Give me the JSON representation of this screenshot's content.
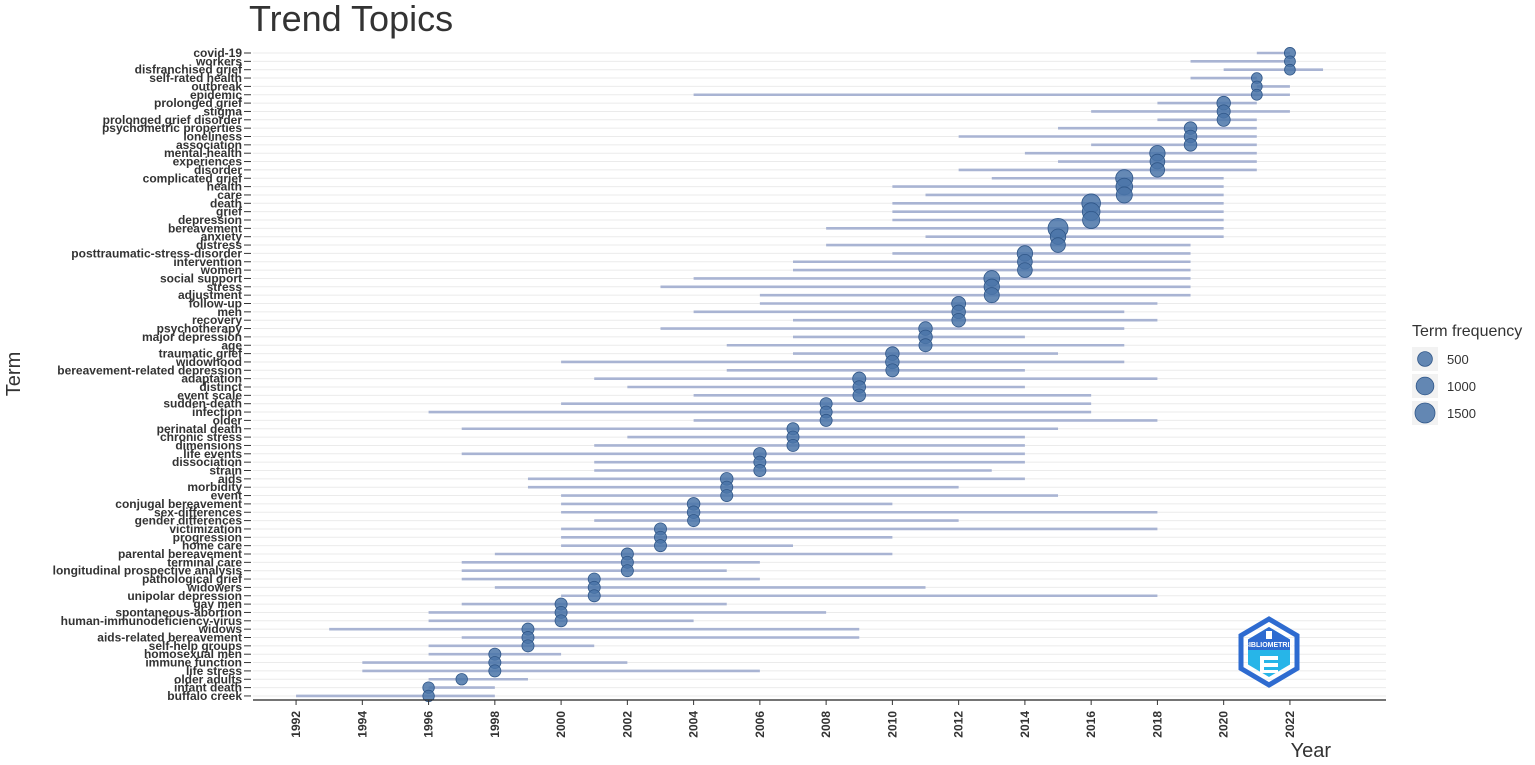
{
  "chart_data": {
    "type": "scatter",
    "title": "Trend Topics",
    "xlabel": "Year",
    "ylabel": "Term",
    "xlim": [
      1990.7,
      2024.9
    ],
    "x_ticks": [
      1992,
      1994,
      1996,
      1998,
      2000,
      2002,
      2004,
      2006,
      2008,
      2010,
      2012,
      2014,
      2016,
      2018,
      2020,
      2022
    ],
    "grid": true,
    "legend": {
      "title": "Term frequency",
      "position": "right",
      "entries": [
        {
          "label": "500",
          "value": 500
        },
        {
          "label": "1000",
          "value": 1000
        },
        {
          "label": "1500",
          "value": 1500
        }
      ]
    },
    "point_color": "#4a74a8",
    "range_color": "#a9b4d3",
    "terms": [
      {
        "term": "covid-19",
        "year_q1": 2021,
        "year_median": 2022,
        "year_q3": 2022,
        "freq": 120
      },
      {
        "term": "workers",
        "year_q1": 2019,
        "year_median": 2022,
        "year_q3": 2022,
        "freq": 110
      },
      {
        "term": "disfranchised grief",
        "year_q1": 2020,
        "year_median": 2022,
        "year_q3": 2023,
        "freq": 100
      },
      {
        "term": "self-rated health",
        "year_q1": 2019,
        "year_median": 2021,
        "year_q3": 2021,
        "freq": 100
      },
      {
        "term": "outbreak",
        "year_q1": 2021,
        "year_median": 2021,
        "year_q3": 2022,
        "freq": 100
      },
      {
        "term": "epidemic",
        "year_q1": 2004,
        "year_median": 2021,
        "year_q3": 2022,
        "freq": 110
      },
      {
        "term": "prolonged grief",
        "year_q1": 2018,
        "year_median": 2020,
        "year_q3": 2021,
        "freq": 350
      },
      {
        "term": "stigma",
        "year_q1": 2016,
        "year_median": 2020,
        "year_q3": 2022,
        "freq": 300
      },
      {
        "term": "prolonged grief disorder",
        "year_q1": 2018,
        "year_median": 2020,
        "year_q3": 2021,
        "freq": 300
      },
      {
        "term": "psychometric properties",
        "year_q1": 2015,
        "year_median": 2019,
        "year_q3": 2021,
        "freq": 250
      },
      {
        "term": "loneliness",
        "year_q1": 2012,
        "year_median": 2019,
        "year_q3": 2021,
        "freq": 250
      },
      {
        "term": "association",
        "year_q1": 2016,
        "year_median": 2019,
        "year_q3": 2021,
        "freq": 250
      },
      {
        "term": "mental-health",
        "year_q1": 2014,
        "year_median": 2018,
        "year_q3": 2021,
        "freq": 600
      },
      {
        "term": "experiences",
        "year_q1": 2015,
        "year_median": 2018,
        "year_q3": 2021,
        "freq": 500
      },
      {
        "term": "disorder",
        "year_q1": 2012,
        "year_median": 2018,
        "year_q3": 2021,
        "freq": 450
      },
      {
        "term": "complicated grief",
        "year_q1": 2013,
        "year_median": 2017,
        "year_q3": 2020,
        "freq": 900
      },
      {
        "term": "health",
        "year_q1": 2010,
        "year_median": 2017,
        "year_q3": 2020,
        "freq": 800
      },
      {
        "term": "care",
        "year_q1": 2011,
        "year_median": 2017,
        "year_q3": 2020,
        "freq": 700
      },
      {
        "term": "death",
        "year_q1": 2010,
        "year_median": 2016,
        "year_q3": 2020,
        "freq": 1200
      },
      {
        "term": "grief",
        "year_q1": 2010,
        "year_median": 2016,
        "year_q3": 2020,
        "freq": 1000
      },
      {
        "term": "depression",
        "year_q1": 2010,
        "year_median": 2016,
        "year_q3": 2020,
        "freq": 900
      },
      {
        "term": "bereavement",
        "year_q1": 2008,
        "year_median": 2015,
        "year_q3": 2020,
        "freq": 1500
      },
      {
        "term": "anxiety",
        "year_q1": 2011,
        "year_median": 2015,
        "year_q3": 2020,
        "freq": 600
      },
      {
        "term": "distress",
        "year_q1": 2008,
        "year_median": 2015,
        "year_q3": 2019,
        "freq": 500
      },
      {
        "term": "posttraumatic-stress-disorder",
        "year_q1": 2010,
        "year_median": 2014,
        "year_q3": 2019,
        "freq": 600
      },
      {
        "term": "intervention",
        "year_q1": 2007,
        "year_median": 2014,
        "year_q3": 2019,
        "freq": 500
      },
      {
        "term": "women",
        "year_q1": 2007,
        "year_median": 2014,
        "year_q3": 2019,
        "freq": 500
      },
      {
        "term": "social support",
        "year_q1": 2004,
        "year_median": 2013,
        "year_q3": 2019,
        "freq": 650
      },
      {
        "term": "stress",
        "year_q1": 2003,
        "year_median": 2013,
        "year_q3": 2019,
        "freq": 600
      },
      {
        "term": "adjustment",
        "year_q1": 2006,
        "year_median": 2013,
        "year_q3": 2019,
        "freq": 550
      },
      {
        "term": "follow-up",
        "year_q1": 2006,
        "year_median": 2012,
        "year_q3": 2018,
        "freq": 400
      },
      {
        "term": "men",
        "year_q1": 2004,
        "year_median": 2012,
        "year_q3": 2017,
        "freq": 350
      },
      {
        "term": "recovery",
        "year_q1": 2007,
        "year_median": 2012,
        "year_q3": 2018,
        "freq": 350
      },
      {
        "term": "psychotherapy",
        "year_q1": 2003,
        "year_median": 2011,
        "year_q3": 2017,
        "freq": 350
      },
      {
        "term": "major depression",
        "year_q1": 2007,
        "year_median": 2011,
        "year_q3": 2014,
        "freq": 350
      },
      {
        "term": "age",
        "year_q1": 2005,
        "year_median": 2011,
        "year_q3": 2017,
        "freq": 300
      },
      {
        "term": "traumatic grief",
        "year_q1": 2007,
        "year_median": 2010,
        "year_q3": 2015,
        "freq": 350
      },
      {
        "term": "widowhood",
        "year_q1": 2000,
        "year_median": 2010,
        "year_q3": 2017,
        "freq": 350
      },
      {
        "term": "bereavement-related depression",
        "year_q1": 2005,
        "year_median": 2010,
        "year_q3": 2014,
        "freq": 300
      },
      {
        "term": "adaptation",
        "year_q1": 2001,
        "year_median": 2009,
        "year_q3": 2018,
        "freq": 300
      },
      {
        "term": "distinct",
        "year_q1": 2002,
        "year_median": 2009,
        "year_q3": 2014,
        "freq": 250
      },
      {
        "term": "event scale",
        "year_q1": 2004,
        "year_median": 2009,
        "year_q3": 2016,
        "freq": 250
      },
      {
        "term": "sudden-death",
        "year_q1": 2000,
        "year_median": 2008,
        "year_q3": 2016,
        "freq": 200
      },
      {
        "term": "infection",
        "year_q1": 1996,
        "year_median": 2008,
        "year_q3": 2016,
        "freq": 200
      },
      {
        "term": "older",
        "year_q1": 2004,
        "year_median": 2008,
        "year_q3": 2018,
        "freq": 200
      },
      {
        "term": "perinatal death",
        "year_q1": 1997,
        "year_median": 2007,
        "year_q3": 2015,
        "freq": 200
      },
      {
        "term": "chronic stress",
        "year_q1": 2002,
        "year_median": 2007,
        "year_q3": 2014,
        "freq": 200
      },
      {
        "term": "dimensions",
        "year_q1": 2001,
        "year_median": 2007,
        "year_q3": 2014,
        "freq": 200
      },
      {
        "term": "life events",
        "year_q1": 1997,
        "year_median": 2006,
        "year_q3": 2014,
        "freq": 250
      },
      {
        "term": "dissociation",
        "year_q1": 2001,
        "year_median": 2006,
        "year_q3": 2014,
        "freq": 200
      },
      {
        "term": "strain",
        "year_q1": 2001,
        "year_median": 2006,
        "year_q3": 2013,
        "freq": 200
      },
      {
        "term": "aids",
        "year_q1": 1999,
        "year_median": 2005,
        "year_q3": 2014,
        "freq": 250
      },
      {
        "term": "morbidity",
        "year_q1": 1999,
        "year_median": 2005,
        "year_q3": 2012,
        "freq": 200
      },
      {
        "term": "event",
        "year_q1": 2000,
        "year_median": 2005,
        "year_q3": 2015,
        "freq": 200
      },
      {
        "term": "conjugal bereavement",
        "year_q1": 2000,
        "year_median": 2004,
        "year_q3": 2010,
        "freq": 250
      },
      {
        "term": "sex-differences",
        "year_q1": 2000,
        "year_median": 2004,
        "year_q3": 2018,
        "freq": 250
      },
      {
        "term": "gender differences",
        "year_q1": 2001,
        "year_median": 2004,
        "year_q3": 2012,
        "freq": 200
      },
      {
        "term": "victimization",
        "year_q1": 2000,
        "year_median": 2003,
        "year_q3": 2018,
        "freq": 200
      },
      {
        "term": "progression",
        "year_q1": 2000,
        "year_median": 2003,
        "year_q3": 2010,
        "freq": 200
      },
      {
        "term": "home care",
        "year_q1": 2000,
        "year_median": 2003,
        "year_q3": 2007,
        "freq": 200
      },
      {
        "term": "parental bereavement",
        "year_q1": 1998,
        "year_median": 2002,
        "year_q3": 2010,
        "freq": 200
      },
      {
        "term": "terminal care",
        "year_q1": 1997,
        "year_median": 2002,
        "year_q3": 2006,
        "freq": 200
      },
      {
        "term": "longitudinal prospective analysis",
        "year_q1": 1997,
        "year_median": 2002,
        "year_q3": 2005,
        "freq": 200
      },
      {
        "term": "pathological grief",
        "year_q1": 1997,
        "year_median": 2001,
        "year_q3": 2006,
        "freq": 200
      },
      {
        "term": "widowers",
        "year_q1": 1998,
        "year_median": 2001,
        "year_q3": 2011,
        "freq": 200
      },
      {
        "term": "unipolar depression",
        "year_q1": 2000,
        "year_median": 2001,
        "year_q3": 2018,
        "freq": 200
      },
      {
        "term": "gay men",
        "year_q1": 1997,
        "year_median": 2000,
        "year_q3": 2005,
        "freq": 200
      },
      {
        "term": "spontaneous-abortion",
        "year_q1": 1996,
        "year_median": 2000,
        "year_q3": 2008,
        "freq": 200
      },
      {
        "term": "human-immunodeficiency-virus",
        "year_q1": 1996,
        "year_median": 2000,
        "year_q3": 2004,
        "freq": 200
      },
      {
        "term": "widows",
        "year_q1": 1993,
        "year_median": 1999,
        "year_q3": 2009,
        "freq": 200
      },
      {
        "term": "aids-related bereavement",
        "year_q1": 1997,
        "year_median": 1999,
        "year_q3": 2009,
        "freq": 200
      },
      {
        "term": "self-help groups",
        "year_q1": 1996,
        "year_median": 1999,
        "year_q3": 2001,
        "freq": 200
      },
      {
        "term": "homosexual men",
        "year_q1": 1996,
        "year_median": 1998,
        "year_q3": 2000,
        "freq": 200
      },
      {
        "term": "immune function",
        "year_q1": 1994,
        "year_median": 1998,
        "year_q3": 2002,
        "freq": 200
      },
      {
        "term": "life stress",
        "year_q1": 1994,
        "year_median": 1998,
        "year_q3": 2006,
        "freq": 200
      },
      {
        "term": "older adults",
        "year_q1": 1996,
        "year_median": 1997,
        "year_q3": 1999,
        "freq": 150
      },
      {
        "term": "infant death",
        "year_q1": 1996,
        "year_median": 1996,
        "year_q3": 1998,
        "freq": 150
      },
      {
        "term": "buffalo creek",
        "year_q1": 1992,
        "year_median": 1996,
        "year_q3": 1998,
        "freq": 150
      }
    ]
  },
  "watermark": {
    "text": "BIBLIOMETRIX",
    "colors": [
      "#2e6bd0",
      "#27b5e8"
    ]
  }
}
